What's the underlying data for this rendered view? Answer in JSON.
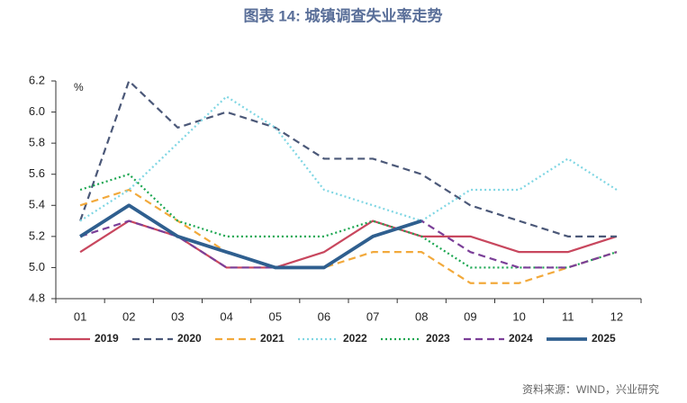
{
  "chart_data": {
    "type": "line",
    "title": "图表 14: 城镇调查失业率走势",
    "y_unit": "%",
    "source": "资料来源：WIND，兴业研究",
    "categories": [
      "01",
      "02",
      "03",
      "04",
      "05",
      "06",
      "07",
      "08",
      "09",
      "10",
      "11",
      "12"
    ],
    "ylim": [
      4.8,
      6.2
    ],
    "yticks": [
      4.8,
      {
        "value": 5,
        "label": "5.0"
      },
      5.2,
      5.4,
      5.6,
      5.8,
      {
        "value": 6,
        "label": "6.0"
      },
      6.2
    ],
    "legend": "bottom",
    "series": [
      {
        "name": "2019",
        "color": "#c8475e",
        "line_style": "solid",
        "values": [
          5.1,
          5.3,
          5.2,
          5.0,
          5.0,
          5.1,
          5.3,
          5.2,
          5.2,
          5.1,
          5.1,
          5.2
        ]
      },
      {
        "name": "2020",
        "color": "#4b5878",
        "line_style": "dashed",
        "values": [
          5.3,
          6.2,
          5.9,
          6.0,
          5.9,
          5.7,
          5.7,
          5.6,
          5.4,
          5.3,
          5.2,
          5.2
        ]
      },
      {
        "name": "2021",
        "color": "#f2a93b",
        "line_style": "dashed",
        "values": [
          5.4,
          5.5,
          5.3,
          5.1,
          5.0,
          5.0,
          5.1,
          5.1,
          4.9,
          4.9,
          5.0,
          5.1
        ]
      },
      {
        "name": "2022",
        "color": "#7fd6e3",
        "line_style": "dotted",
        "values": [
          5.3,
          5.5,
          5.8,
          6.1,
          5.9,
          5.5,
          5.4,
          5.3,
          5.5,
          5.5,
          5.7,
          5.5
        ]
      },
      {
        "name": "2023",
        "color": "#1aa650",
        "line_style": "dotted",
        "values": [
          5.5,
          5.6,
          5.3,
          5.2,
          5.2,
          5.2,
          5.3,
          5.2,
          5.0,
          5.0,
          5.0,
          5.1
        ]
      },
      {
        "name": "2024",
        "color": "#7b3f98",
        "line_style": "dashed",
        "values": [
          5.2,
          5.3,
          5.2,
          5.0,
          5.0,
          5.0,
          5.2,
          5.3,
          5.1,
          5.0,
          5.0,
          5.1
        ]
      },
      {
        "name": "2025",
        "color": "#2f5f8f",
        "line_style": "thick",
        "values": [
          5.2,
          5.4,
          5.2,
          5.1,
          5.0,
          5.0,
          5.2,
          5.3,
          null,
          null,
          null,
          null
        ]
      }
    ]
  }
}
